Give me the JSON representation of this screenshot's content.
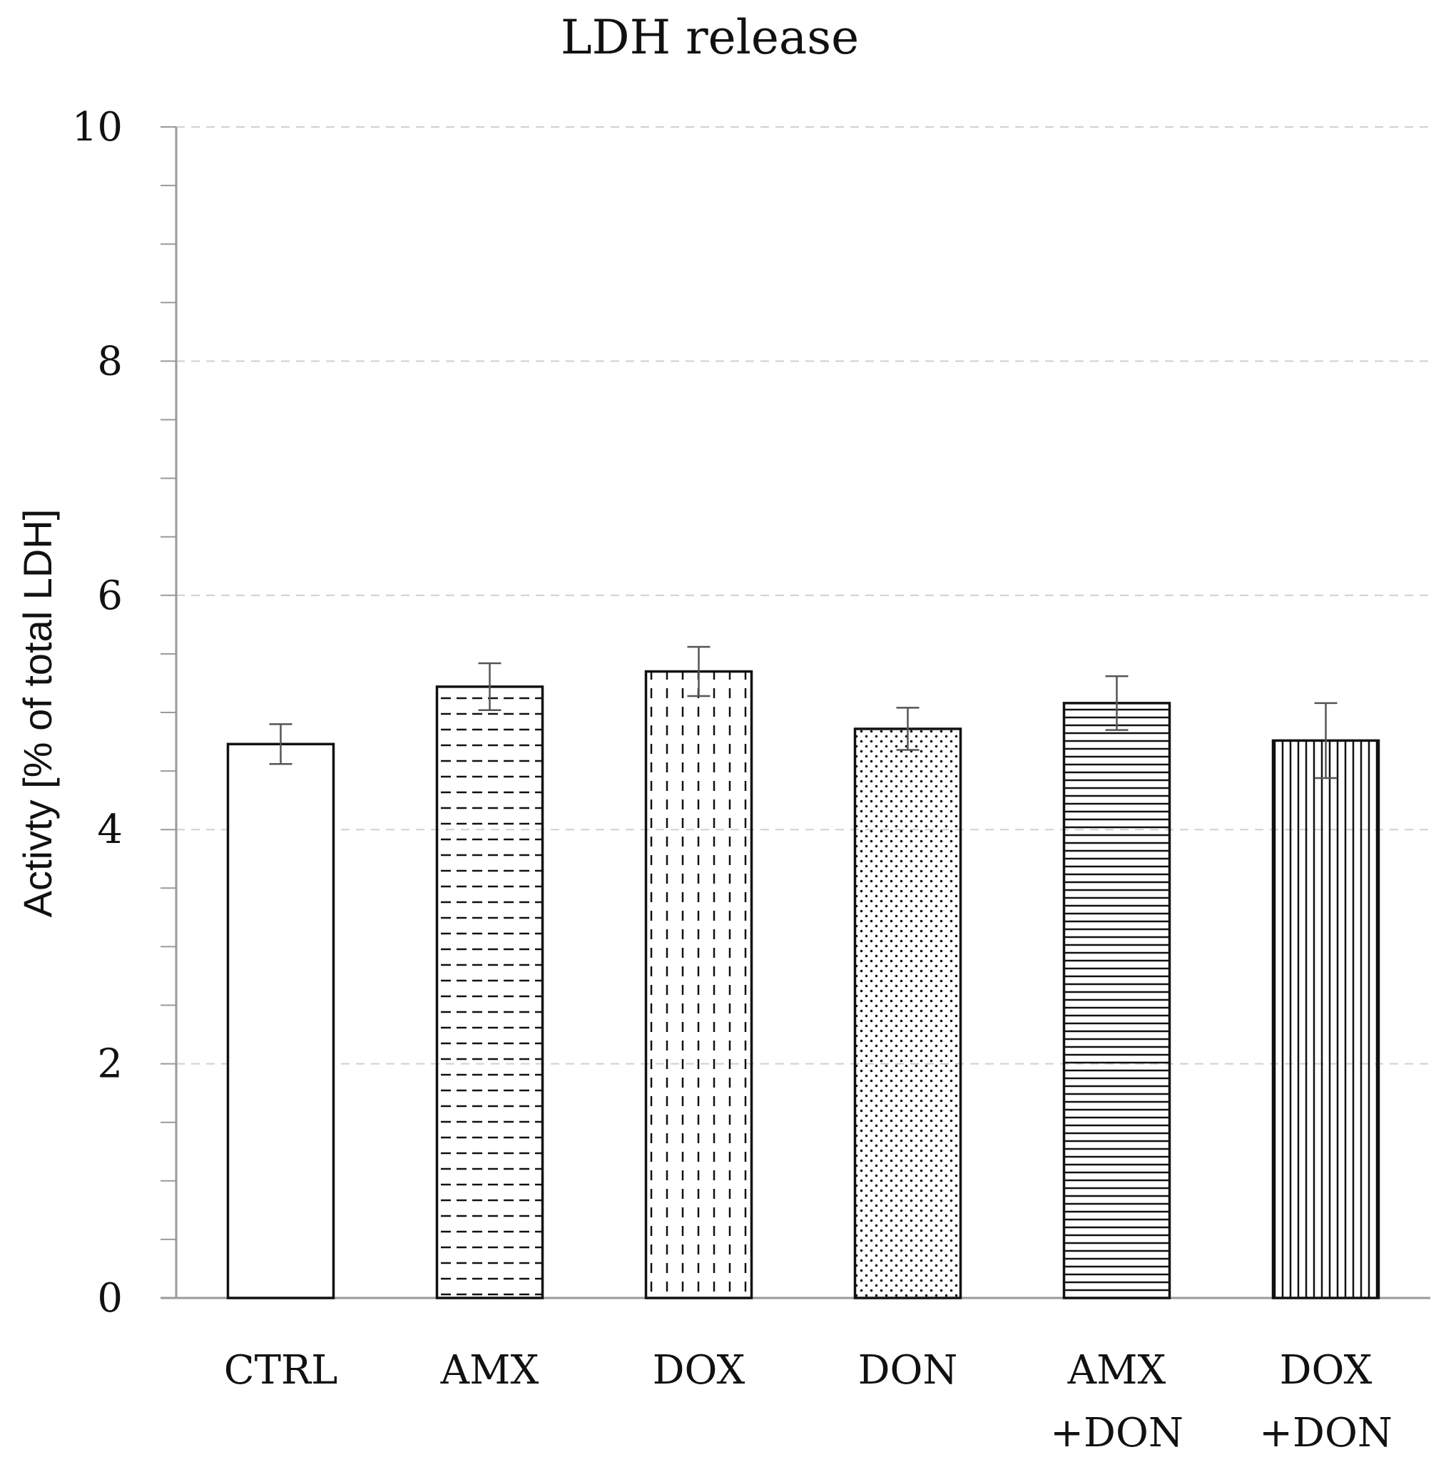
{
  "chart_data": {
    "type": "bar",
    "title": "LDH release",
    "xlabel": "",
    "ylabel": "Activty [% of total LDH]",
    "ylim": [
      0,
      10
    ],
    "yticks": [
      0,
      2,
      4,
      6,
      8,
      10
    ],
    "grid": true,
    "categories": [
      [
        "CTRL"
      ],
      [
        "AMX"
      ],
      [
        "DOX"
      ],
      [
        "DON"
      ],
      [
        "AMX",
        "+DON"
      ],
      [
        "DOX",
        "+DON"
      ]
    ],
    "values": [
      4.73,
      5.22,
      5.35,
      4.86,
      5.08,
      4.76
    ],
    "errors": [
      0.17,
      0.2,
      0.21,
      0.18,
      0.23,
      0.32
    ],
    "patterns": [
      "none",
      "dashes-horizontal",
      "dashes-vertical",
      "dots",
      "horizontal-lines",
      "vertical-lines"
    ]
  }
}
